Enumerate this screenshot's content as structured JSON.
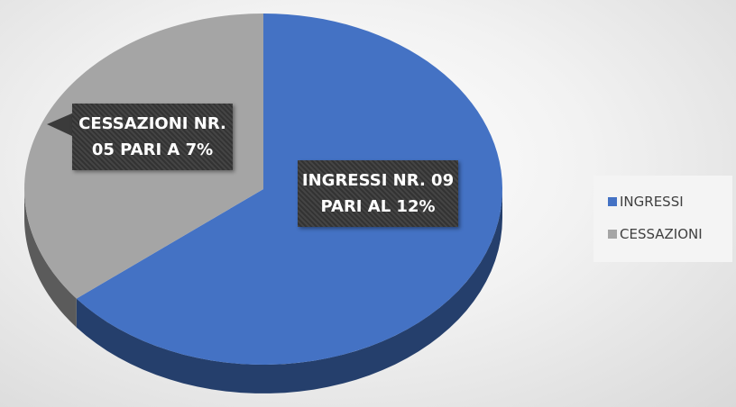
{
  "chart_data": {
    "type": "pie",
    "categories": [
      "INGRESSI",
      "CESSAZIONI"
    ],
    "values": [
      9,
      5
    ],
    "value_labels": [
      "INGRESSI NR. 09 PARI AL 12%",
      "CESSAZIONI NR. 05 PARI A 7%"
    ],
    "colors": [
      "#4472c4",
      "#a5a5a5"
    ],
    "legend": "right"
  }
}
